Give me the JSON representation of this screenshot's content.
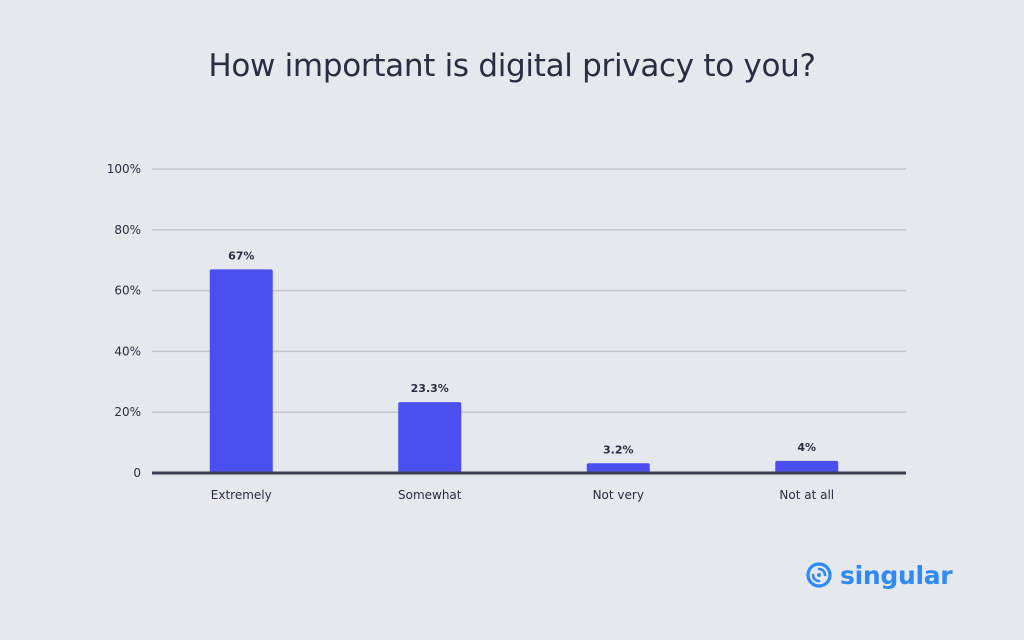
{
  "brand": {
    "name": "singular",
    "color": "#2f8af5",
    "icon": "swirl-logo-icon"
  },
  "colors": {
    "background": "#e5e8ec",
    "bar": "#4b4ff0",
    "grid": "#c3c7cf",
    "axis": "#3d4050",
    "text": "#2b2d42"
  },
  "chart_data": {
    "type": "bar",
    "title": "How important is digital privacy to you?",
    "xlabel": "",
    "ylabel": "",
    "categories": [
      "Extremely",
      "Somewhat",
      "Not very",
      "Not at all"
    ],
    "values": [
      67,
      23.3,
      3.2,
      4
    ],
    "data_labels": [
      "67%",
      "23.3%",
      "3.2%",
      "4%"
    ],
    "ylim": [
      0,
      100
    ],
    "y_ticks": [
      0,
      20,
      40,
      60,
      80,
      100
    ],
    "y_tick_labels": [
      "0",
      "20%",
      "40%",
      "60%",
      "80%",
      "100%"
    ],
    "grid": true,
    "legend": "none"
  }
}
